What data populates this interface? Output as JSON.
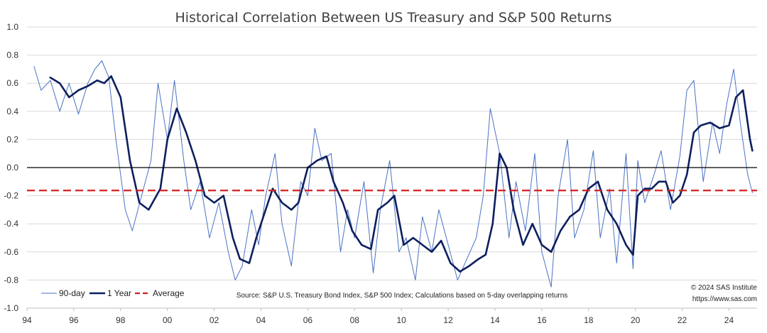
{
  "chart_data": {
    "type": "line",
    "title": "Historical Correlation Between US Treasury and S&P 500 Returns",
    "x_ticks": [
      "94",
      "96",
      "98",
      "00",
      "02",
      "04",
      "06",
      "08",
      "10",
      "12",
      "14",
      "16",
      "18",
      "20",
      "22",
      "24"
    ],
    "y_ticks": [
      "1.0",
      "0.8",
      "0.6",
      "0.4",
      "0.2",
      "0.0",
      "-0.2",
      "-0.4",
      "-0.6",
      "-0.8",
      "-1.0"
    ],
    "ylim": [
      -1.0,
      1.0
    ],
    "xlim": [
      1994.0,
      2025.2
    ],
    "zero_line": 0.0,
    "average": -0.163,
    "colors": {
      "ninety_day": "#4a72c4",
      "one_year": "#0d1f5e",
      "average": "#d42020",
      "zero": "#000000",
      "grid": "#d9d9d9"
    },
    "legend": [
      {
        "key": "ninety_day",
        "label": "90-day"
      },
      {
        "key": "one_year",
        "label": "1 Year"
      },
      {
        "key": "average",
        "label": "Average"
      }
    ],
    "source": "Source: S&P U.S. Treasury Bond Index, S&P 500 Index; Calculations based on 5-day overlapping returns",
    "copyright": "© 2024 SAS Institute",
    "url": "https://www.sas.com",
    "series": [
      {
        "key": "ninety_day",
        "x": [
          1994.3,
          1994.6,
          1995.0,
          1995.4,
          1995.8,
          1996.2,
          1996.6,
          1996.9,
          1997.2,
          1997.5,
          1997.8,
          1998.2,
          1998.5,
          1998.9,
          1999.3,
          1999.6,
          2000.0,
          2000.3,
          2000.7,
          2001.0,
          2001.4,
          2001.8,
          2002.2,
          2002.6,
          2002.9,
          2003.2,
          2003.6,
          2003.9,
          2004.2,
          2004.6,
          2004.9,
          2005.3,
          2005.7,
          2006.0,
          2006.3,
          2006.6,
          2007.0,
          2007.4,
          2007.7,
          2008.0,
          2008.4,
          2008.8,
          2009.1,
          2009.5,
          2009.9,
          2010.2,
          2010.6,
          2010.9,
          2011.3,
          2011.6,
          2012.0,
          2012.4,
          2012.8,
          2013.2,
          2013.5,
          2013.8,
          2014.2,
          2014.6,
          2014.9,
          2015.3,
          2015.7,
          2016.0,
          2016.4,
          2016.7,
          2017.1,
          2017.4,
          2017.8,
          2018.2,
          2018.5,
          2018.9,
          2019.2,
          2019.6,
          2019.9,
          2020.1,
          2020.4,
          2020.8,
          2021.1,
          2021.5,
          2021.9,
          2022.2,
          2022.5,
          2022.9,
          2023.3,
          2023.6,
          2023.9,
          2024.2,
          2024.5,
          2024.8,
          2025.0
        ],
        "y": [
          0.72,
          0.55,
          0.62,
          0.4,
          0.6,
          0.38,
          0.6,
          0.7,
          0.76,
          0.64,
          0.2,
          -0.3,
          -0.45,
          -0.2,
          0.05,
          0.6,
          0.2,
          0.62,
          0.05,
          -0.3,
          -0.1,
          -0.5,
          -0.25,
          -0.6,
          -0.8,
          -0.7,
          -0.3,
          -0.55,
          -0.2,
          0.1,
          -0.4,
          -0.7,
          -0.1,
          -0.2,
          0.28,
          0.05,
          0.1,
          -0.6,
          -0.3,
          -0.5,
          -0.1,
          -0.75,
          -0.3,
          0.05,
          -0.6,
          -0.5,
          -0.8,
          -0.35,
          -0.6,
          -0.3,
          -0.55,
          -0.8,
          -0.65,
          -0.5,
          -0.2,
          0.42,
          0.1,
          -0.5,
          -0.1,
          -0.45,
          0.1,
          -0.6,
          -0.85,
          -0.2,
          0.2,
          -0.5,
          -0.3,
          0.12,
          -0.5,
          -0.15,
          -0.68,
          0.1,
          -0.72,
          0.05,
          -0.25,
          -0.05,
          0.12,
          -0.3,
          0.08,
          0.55,
          0.62,
          -0.1,
          0.32,
          0.1,
          0.45,
          0.7,
          0.3,
          -0.05,
          -0.18
        ]
      },
      {
        "key": "one_year",
        "x": [
          1995.0,
          1995.4,
          1995.8,
          1996.2,
          1996.6,
          1997.0,
          1997.3,
          1997.6,
          1998.0,
          1998.4,
          1998.8,
          1999.2,
          1999.7,
          2000.0,
          2000.4,
          2000.8,
          2001.2,
          2001.6,
          2002.0,
          2002.4,
          2002.8,
          2003.1,
          2003.5,
          2003.8,
          2004.2,
          2004.5,
          2004.9,
          2005.3,
          2005.6,
          2006.0,
          2006.4,
          2006.8,
          2007.1,
          2007.5,
          2007.9,
          2008.3,
          2008.7,
          2009.0,
          2009.4,
          2009.7,
          2010.1,
          2010.5,
          2010.9,
          2011.3,
          2011.7,
          2012.1,
          2012.5,
          2012.9,
          2013.3,
          2013.6,
          2013.9,
          2014.2,
          2014.5,
          2014.8,
          2015.2,
          2015.6,
          2016.0,
          2016.4,
          2016.8,
          2017.2,
          2017.6,
          2018.0,
          2018.4,
          2018.8,
          2019.2,
          2019.6,
          2019.9,
          2020.1,
          2020.4,
          2020.7,
          2021.0,
          2021.3,
          2021.6,
          2021.9,
          2022.2,
          2022.5,
          2022.8,
          2023.2,
          2023.6,
          2024.0,
          2024.3,
          2024.6,
          2024.9,
          2025.0
        ],
        "y": [
          0.64,
          0.6,
          0.5,
          0.55,
          0.58,
          0.62,
          0.6,
          0.65,
          0.5,
          0.05,
          -0.25,
          -0.3,
          -0.15,
          0.2,
          0.42,
          0.25,
          0.05,
          -0.2,
          -0.25,
          -0.2,
          -0.5,
          -0.65,
          -0.68,
          -0.5,
          -0.3,
          -0.15,
          -0.25,
          -0.3,
          -0.25,
          0.0,
          0.05,
          0.08,
          -0.1,
          -0.25,
          -0.45,
          -0.55,
          -0.58,
          -0.3,
          -0.25,
          -0.2,
          -0.55,
          -0.5,
          -0.55,
          -0.6,
          -0.52,
          -0.68,
          -0.74,
          -0.7,
          -0.65,
          -0.62,
          -0.4,
          0.1,
          0.0,
          -0.3,
          -0.55,
          -0.4,
          -0.55,
          -0.6,
          -0.45,
          -0.35,
          -0.3,
          -0.15,
          -0.1,
          -0.3,
          -0.4,
          -0.55,
          -0.62,
          -0.2,
          -0.15,
          -0.15,
          -0.1,
          -0.1,
          -0.25,
          -0.2,
          -0.05,
          0.25,
          0.3,
          0.32,
          0.28,
          0.3,
          0.5,
          0.55,
          0.2,
          0.12
        ]
      }
    ]
  }
}
